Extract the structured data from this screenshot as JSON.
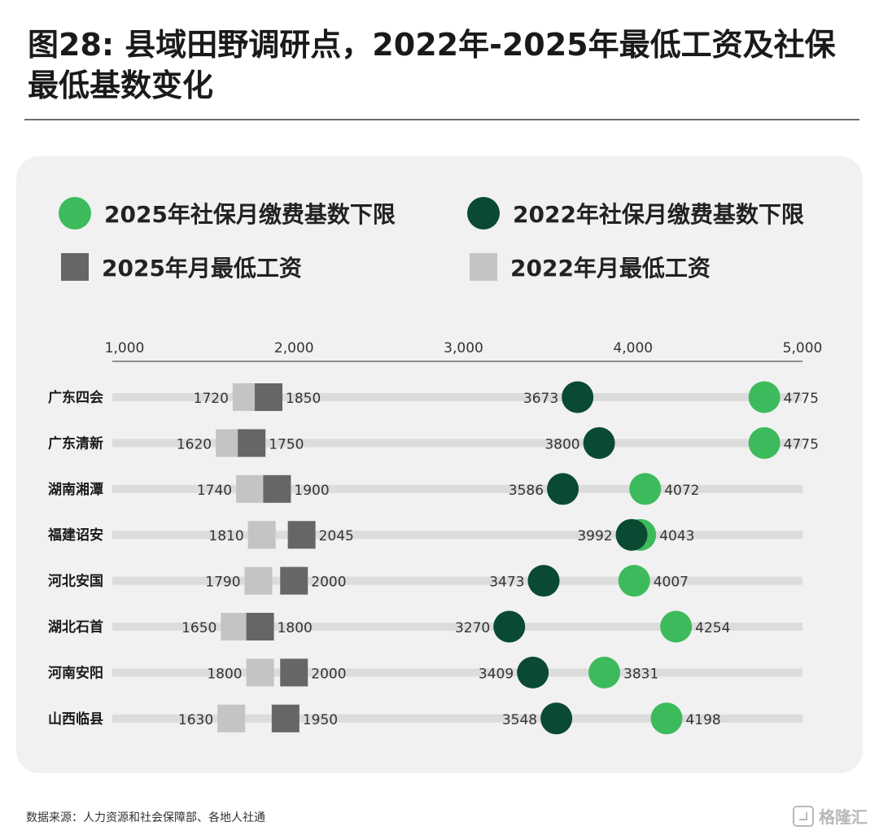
{
  "title": "图28: 县域田野调研点，2022年-2025年最低工资及社保最低基数变化",
  "source": "数据来源：人力资源和社会保障部、各地人社通",
  "watermark": "格隆汇",
  "colors": {
    "social_2025": "#3dbb5c",
    "social_2022": "#0a4a33",
    "wage_2025": "#666666",
    "wage_2022": "#c4c4c4",
    "track": "#dcdcdc"
  },
  "legend": [
    {
      "label": "2025年社保月缴费基数下限",
      "shape": "circle",
      "color_key": "social_2025"
    },
    {
      "label": "2022年社保月缴费基数下限",
      "shape": "circle",
      "color_key": "social_2022"
    },
    {
      "label": "2025年月最低工资",
      "shape": "square",
      "color_key": "wage_2025"
    },
    {
      "label": "2022年月最低工资",
      "shape": "square",
      "color_key": "wage_2022"
    }
  ],
  "chart_data": {
    "type": "dot-range",
    "axis": {
      "min": 1000,
      "max": 5000,
      "ticks": [
        1000,
        2000,
        3000,
        4000,
        5000
      ],
      "tick_labels": [
        "1,000",
        "2,000",
        "3,000",
        "4,000",
        "5,000"
      ],
      "position": "top"
    },
    "categories": [
      "广东四会",
      "广东清新",
      "湖南湘潭",
      "福建诏安",
      "河北安国",
      "湖北石首",
      "河南安阳",
      "山西临县"
    ],
    "series": [
      {
        "name": "2022年月最低工资",
        "values": [
          1720,
          1620,
          1740,
          1810,
          1790,
          1650,
          1800,
          1630
        ]
      },
      {
        "name": "2025年月最低工资",
        "values": [
          1850,
          1750,
          1900,
          2045,
          2000,
          1800,
          2000,
          1950
        ]
      },
      {
        "name": "2022年社保月缴费基数下限",
        "values": [
          3673,
          3800,
          3586,
          3992,
          3473,
          3270,
          3409,
          3548
        ]
      },
      {
        "name": "2025年社保月缴费基数下限",
        "values": [
          4775,
          4775,
          4072,
          4043,
          4007,
          4254,
          3831,
          4198
        ]
      }
    ]
  }
}
